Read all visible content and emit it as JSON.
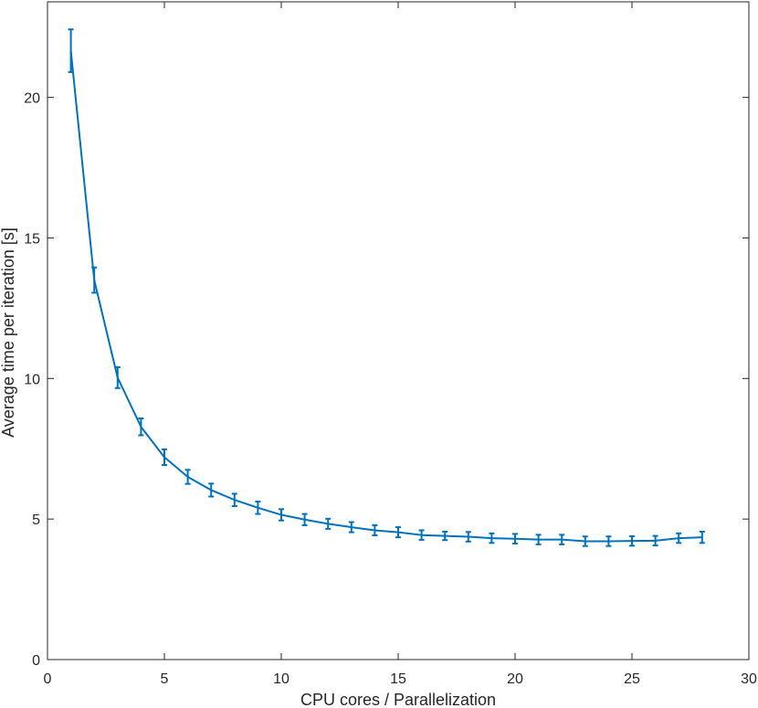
{
  "chart_data": {
    "type": "line",
    "title": "",
    "xlabel": "CPU cores / Parallelization",
    "ylabel": "Average time per iteration [s]",
    "xlim": [
      0,
      30
    ],
    "ylim": [
      0,
      23.4
    ],
    "xticks": [
      0,
      5,
      10,
      15,
      20,
      25,
      30
    ],
    "yticks": [
      0,
      5,
      10,
      15,
      20
    ],
    "grid": false,
    "legend": "none",
    "colors": {
      "series": "#0072BD",
      "axis": "#262626",
      "background": "#ffffff"
    },
    "series": [
      {
        "x": [
          1,
          2,
          3,
          4,
          5,
          6,
          7,
          8,
          9,
          10,
          11,
          12,
          13,
          14,
          15,
          16,
          17,
          18,
          19,
          20,
          21,
          22,
          23,
          24,
          25,
          26,
          27,
          28
        ],
        "y": [
          21.65,
          13.5,
          10.03,
          8.28,
          7.2,
          6.5,
          6.03,
          5.68,
          5.4,
          5.15,
          4.98,
          4.83,
          4.71,
          4.6,
          4.53,
          4.43,
          4.4,
          4.37,
          4.32,
          4.3,
          4.27,
          4.27,
          4.21,
          4.21,
          4.22,
          4.23,
          4.32,
          4.35
        ],
        "err_low": [
          0.75,
          0.45,
          0.37,
          0.3,
          0.28,
          0.25,
          0.23,
          0.22,
          0.22,
          0.2,
          0.2,
          0.18,
          0.18,
          0.18,
          0.18,
          0.17,
          0.15,
          0.17,
          0.17,
          0.17,
          0.17,
          0.17,
          0.17,
          0.17,
          0.17,
          0.17,
          0.17,
          0.2
        ],
        "err_high": [
          0.77,
          0.45,
          0.37,
          0.3,
          0.28,
          0.25,
          0.23,
          0.22,
          0.22,
          0.2,
          0.2,
          0.18,
          0.18,
          0.18,
          0.18,
          0.17,
          0.15,
          0.17,
          0.17,
          0.17,
          0.17,
          0.17,
          0.17,
          0.17,
          0.17,
          0.17,
          0.17,
          0.2
        ]
      }
    ]
  }
}
